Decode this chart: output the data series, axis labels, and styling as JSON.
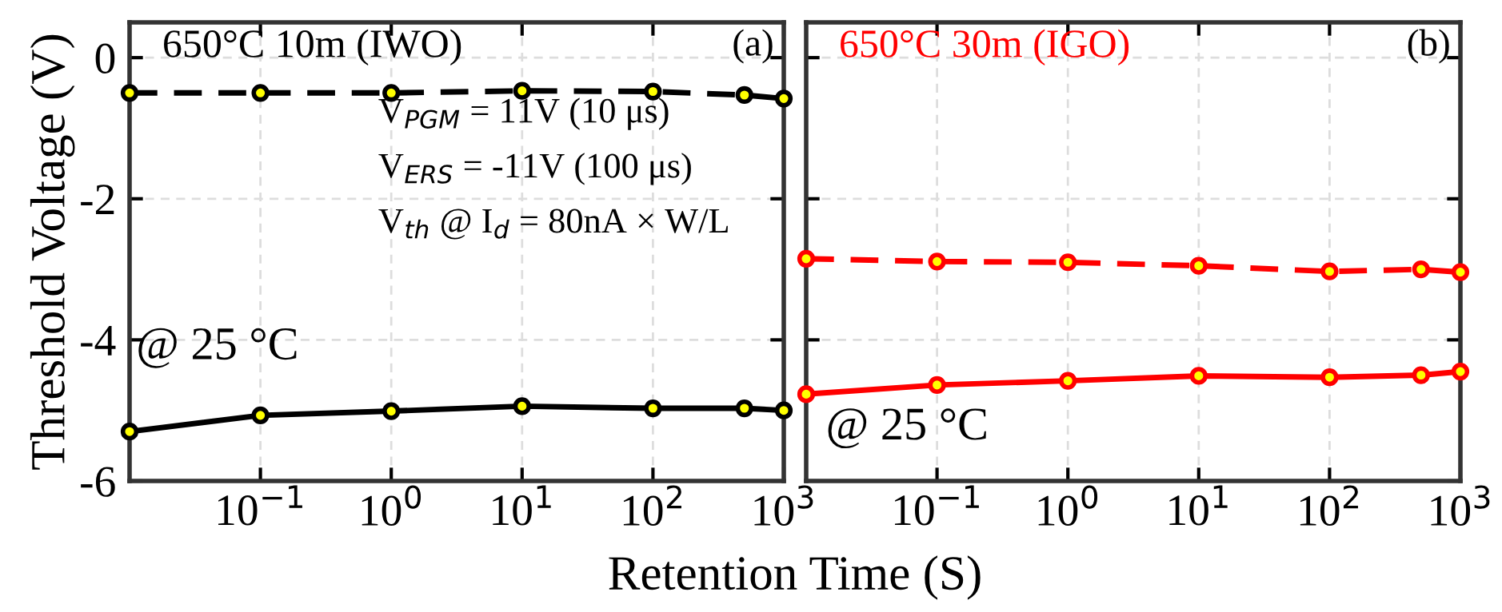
{
  "chart_data": [
    {
      "type": "line",
      "title": "650°C 10m (IWO)",
      "ylabel": "Threshold Voltage (V)",
      "xlabel": "Retention Time (S)",
      "x": [
        0.01,
        0.1,
        1,
        10,
        100,
        500,
        1000
      ],
      "series": [
        {
          "color": "#000000",
          "line_style": "dashed",
          "values": [
            -0.5,
            -0.5,
            -0.5,
            -0.47,
            -0.48,
            -0.53,
            -0.58
          ]
        },
        {
          "color": "#000000",
          "line_style": "solid",
          "values": [
            -5.3,
            -5.07,
            -5.01,
            -4.94,
            -4.97,
            -4.97,
            -5.0
          ]
        }
      ],
      "log": "x",
      "xlim": [
        0.01,
        1000
      ],
      "ylim": [
        -6,
        0.5
      ],
      "xticks": [
        {
          "value": 0.1,
          "label": "10$^{−1}$"
        },
        {
          "value": 1,
          "label": "10$^{0}$"
        },
        {
          "value": 10,
          "label": "10$^{1}$"
        },
        {
          "value": 100,
          "label": "10$^{2}$"
        },
        {
          "value": 1000,
          "label": "10$^{3}$"
        }
      ],
      "yticks": [
        -6,
        -4,
        -2,
        0
      ],
      "grid": true,
      "marker": "circle",
      "annotations": [
        "(a)",
        "V$_{PGM}$ = 11V (10 μs)",
        "V$_{ERS}$ = -11V (100 μs)",
        "V$_{th}$ @ I$_{d}$ = 80nA × W/L",
        "@ 25 °C"
      ]
    },
    {
      "type": "line",
      "title": "650°C 30m (IGO)",
      "x": [
        0.01,
        0.1,
        1,
        10,
        100,
        500,
        1000
      ],
      "series": [
        {
          "color": "#ff0000",
          "line_style": "dashed",
          "values": [
            -2.85,
            -2.89,
            -2.9,
            -2.95,
            -3.03,
            -3.0,
            -3.04
          ]
        },
        {
          "color": "#ff0000",
          "line_style": "solid",
          "values": [
            -4.77,
            -4.64,
            -4.58,
            -4.51,
            -4.53,
            -4.5,
            -4.45
          ]
        }
      ],
      "log": "x",
      "xlim": [
        0.01,
        1000
      ],
      "ylim": [
        -6,
        0.5
      ],
      "xticks": [
        {
          "value": 0.1,
          "label": "10$^{−1}$"
        },
        {
          "value": 1,
          "label": "10$^{0}$"
        },
        {
          "value": 10,
          "label": "10$^{1}$"
        },
        {
          "value": 100,
          "label": "10$^{2}$"
        },
        {
          "value": 1000,
          "label": "10$^{3}$"
        }
      ],
      "yticks": [
        -6,
        -4,
        -2,
        0
      ],
      "tick_labels": "x",
      "grid": true,
      "marker": "circle",
      "annotations": [
        "(b)",
        "@ 25 °C"
      ]
    }
  ]
}
